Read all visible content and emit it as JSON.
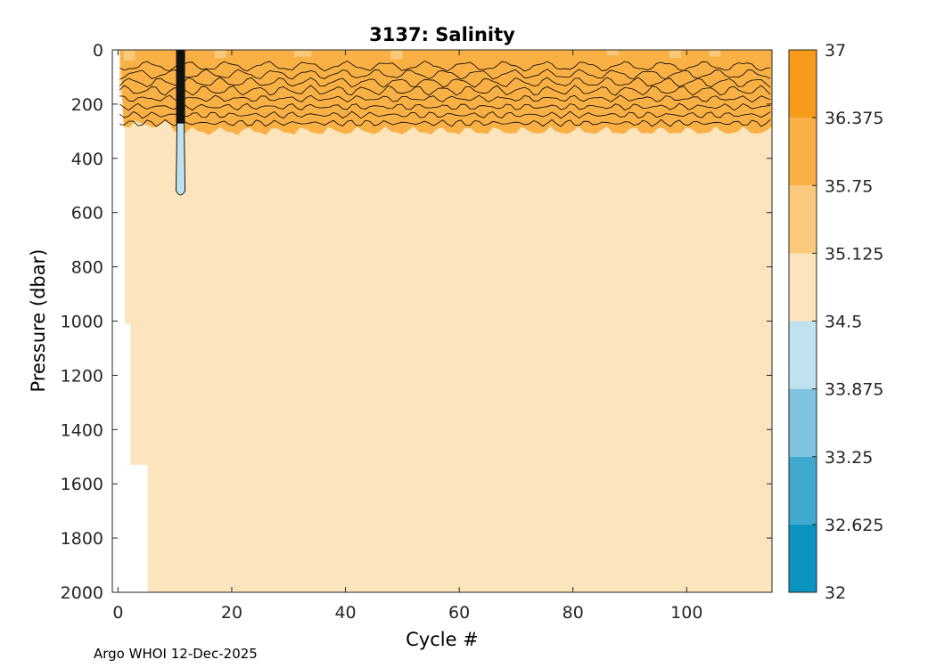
{
  "chart_data": {
    "type": "heatmap",
    "title": "3137:  Salinity",
    "xlabel": "Cycle #",
    "ylabel": "Pressure (dbar)",
    "xlim": [
      -1,
      115
    ],
    "ylim": [
      0,
      2000
    ],
    "x_ticks": [
      0,
      20,
      40,
      60,
      80,
      100
    ],
    "y_ticks": [
      0,
      200,
      400,
      600,
      800,
      1000,
      1200,
      1400,
      1600,
      1800,
      2000
    ],
    "colorbar": {
      "levels": [
        32,
        32.625,
        33.25,
        33.875,
        34.5,
        35.125,
        35.75,
        36.375,
        37
      ],
      "tick_labels": [
        "32",
        "32.625",
        "33.25",
        "33.875",
        "34.5",
        "35.125",
        "35.75",
        "36.375",
        "37"
      ],
      "colors": [
        "#0b93c1",
        "#3fa9d0",
        "#7ec3df",
        "#c0e1ee",
        "#fce5bc",
        "#fbc97c",
        "#f9b045",
        "#f89a1a"
      ]
    },
    "field_summary": {
      "surface_layer_salinity_band": [
        35.75,
        36.375
      ],
      "surface_layer_bottom_dbar": 300,
      "deep_salinity_band": [
        34.5,
        35.125
      ],
      "low_salinity_anomaly": {
        "cycle": 11,
        "pressure_range_dbar": [
          0,
          540
        ],
        "band": [
          33.875,
          34.5
        ]
      },
      "profile_max_depth_by_cycle": [
        {
          "cycles": [
            0,
            1
          ],
          "max_pressure_dbar": 170
        },
        {
          "cycles": [
            1,
            2
          ],
          "max_pressure_dbar": 1010
        },
        {
          "cycles": [
            2,
            5
          ],
          "max_pressure_dbar": 1530
        },
        {
          "cycles": [
            5,
            115
          ],
          "max_pressure_dbar": 2000
        }
      ]
    }
  },
  "footer": {
    "text": "Argo WHOI 12-Dec-2025"
  }
}
